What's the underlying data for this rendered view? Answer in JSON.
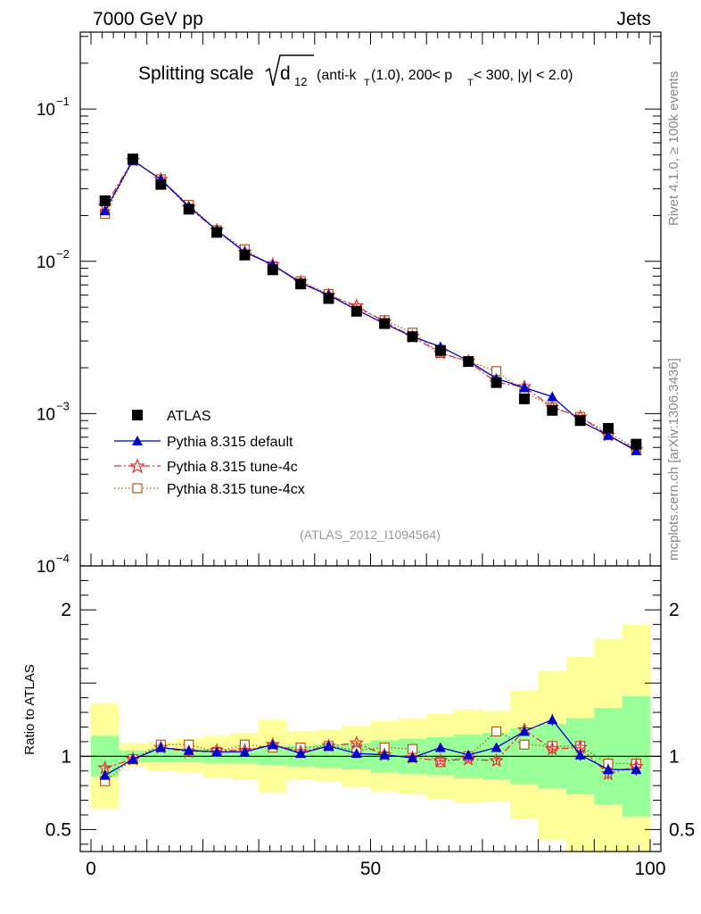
{
  "header": {
    "left": "7000 GeV pp",
    "right": "Jets"
  },
  "side_labels": {
    "rivet": "Rivet 4.1.0, ≥ 100k events",
    "mcplots": "mcplots.cern.ch [arXiv:1306.3436]"
  },
  "chart_data": {
    "type": "line",
    "title": {
      "main": "Splitting scale",
      "symbol": "d",
      "subscript": "12",
      "details_prefix": "(anti-k",
      "details_sub_t": "T",
      "details_mid": "(1.0), 200< p",
      "details_sub_t2": "T",
      "details_suffix": " < 300, |y| < 2.0)"
    },
    "watermark": "(ATLAS_2012_I1094564)",
    "xlim": [
      0,
      100
    ],
    "x_ticks": [
      0,
      50,
      100
    ],
    "x": [
      2.5,
      7.5,
      12.5,
      17.5,
      22.5,
      27.5,
      32.5,
      37.5,
      42.5,
      47.5,
      52.5,
      57.5,
      62.5,
      67.5,
      72.5,
      77.5,
      82.5,
      87.5,
      92.5,
      97.5
    ],
    "main_panel": {
      "yscale": "log",
      "ylim": [
        0.0001,
        0.32
      ],
      "y_ticks": [
        {
          "value": 0.1,
          "base": "10",
          "exp": "−1"
        },
        {
          "value": 0.01,
          "base": "10",
          "exp": "−2"
        },
        {
          "value": 0.001,
          "base": "10",
          "exp": "−3"
        },
        {
          "value": 0.0001,
          "base": "10",
          "exp": "−4"
        }
      ]
    },
    "ratio_panel": {
      "ylabel": "Ratio to ATLAS",
      "ylim": [
        0.35,
        2.3
      ],
      "y_ticks": [
        {
          "value": 0.5,
          "label": "0.5"
        },
        {
          "value": 1,
          "label": "1"
        },
        {
          "value": 2,
          "label": "2"
        }
      ],
      "band_yellow": {
        "low": [
          0.64,
          0.93,
          0.9,
          0.89,
          0.85,
          0.84,
          0.75,
          0.84,
          0.83,
          0.79,
          0.76,
          0.74,
          0.71,
          0.68,
          0.69,
          0.57,
          0.43,
          0.34,
          0.3,
          0.28
        ],
        "high": [
          1.36,
          1.09,
          1.1,
          1.12,
          1.14,
          1.16,
          1.25,
          1.17,
          1.18,
          1.21,
          1.24,
          1.26,
          1.29,
          1.32,
          1.31,
          1.45,
          1.58,
          1.68,
          1.8,
          1.9
        ]
      },
      "band_green": {
        "low": [
          0.86,
          0.96,
          0.96,
          0.96,
          0.95,
          0.95,
          0.94,
          0.93,
          0.92,
          0.91,
          0.89,
          0.88,
          0.87,
          0.85,
          0.84,
          0.81,
          0.78,
          0.74,
          0.67,
          0.59
        ],
        "high": [
          1.14,
          1.04,
          1.05,
          1.05,
          1.05,
          1.05,
          1.06,
          1.07,
          1.08,
          1.09,
          1.11,
          1.12,
          1.13,
          1.15,
          1.16,
          1.19,
          1.22,
          1.26,
          1.33,
          1.41
        ]
      }
    },
    "series": [
      {
        "name": "ATLAS",
        "color": "#000000",
        "marker": "square",
        "values": [
          0.025,
          0.047,
          0.032,
          0.022,
          0.0155,
          0.011,
          0.0088,
          0.0071,
          0.0057,
          0.0047,
          0.0039,
          0.0032,
          0.0026,
          0.0022,
          0.0016,
          0.00125,
          0.00105,
          0.0009,
          0.0008,
          0.00063
        ],
        "ratio": [
          1,
          1,
          1,
          1,
          1,
          1,
          1,
          1,
          1,
          1,
          1,
          1,
          1,
          1,
          1,
          1,
          1,
          1,
          1,
          1
        ]
      },
      {
        "name": "Pythia 8.315 default",
        "color": "#0000cc",
        "marker": "triangle",
        "line": "solid",
        "values": [
          0.0215,
          0.046,
          0.0345,
          0.023,
          0.016,
          0.0115,
          0.0095,
          0.0072,
          0.006,
          0.0048,
          0.0039,
          0.0032,
          0.00275,
          0.00222,
          0.0017,
          0.00148,
          0.00129,
          0.00089,
          0.00072,
          0.00057
        ],
        "ratio": [
          0.87,
          0.98,
          1.06,
          1.04,
          1.03,
          1.03,
          1.08,
          1.02,
          1.07,
          1.02,
          1.01,
          0.99,
          1.06,
          1.01,
          1.06,
          1.17,
          1.25,
          1.01,
          0.91,
          0.91
        ],
        "ratio_err": [
          0.02,
          0.01,
          0.01,
          0.01,
          0.01,
          0.01,
          0.01,
          0.01,
          0.01,
          0.01,
          0.01,
          0.015,
          0.02,
          0.02,
          0.025,
          0.03,
          0.04,
          0.04,
          0.04,
          0.04
        ]
      },
      {
        "name": "Pythia 8.315 tune-4c",
        "color": "#dd3333",
        "marker": "star",
        "line": "dashdot",
        "values": [
          0.023,
          0.046,
          0.0345,
          0.0225,
          0.016,
          0.0115,
          0.0095,
          0.0073,
          0.006,
          0.0051,
          0.004,
          0.0032,
          0.0025,
          0.0022,
          0.0016,
          0.0015,
          0.0011,
          0.00095,
          0.00072,
          0.00058
        ],
        "ratio": [
          0.92,
          0.98,
          1.06,
          1.03,
          1.04,
          1.04,
          1.08,
          1.03,
          1.07,
          1.09,
          1.01,
          0.99,
          0.97,
          0.98,
          0.97,
          1.18,
          1.05,
          1.06,
          0.88,
          0.93
        ],
        "ratio_err": [
          0.02,
          0.01,
          0.01,
          0.01,
          0.01,
          0.01,
          0.01,
          0.01,
          0.01,
          0.015,
          0.015,
          0.015,
          0.02,
          0.02,
          0.025,
          0.03,
          0.04,
          0.04,
          0.04,
          0.04
        ]
      },
      {
        "name": "Pythia 8.315 tune-4cx",
        "color": "#b05a1a",
        "marker": "open-square",
        "line": "dotted",
        "values": [
          0.0205,
          0.046,
          0.0345,
          0.0235,
          0.016,
          0.012,
          0.0093,
          0.0074,
          0.0061,
          0.0049,
          0.0041,
          0.0034,
          0.0025,
          0.0022,
          0.0019,
          0.0014,
          0.0011,
          0.00095,
          0.00075,
          0.00059
        ],
        "ratio": [
          0.83,
          0.98,
          1.08,
          1.08,
          1.03,
          1.08,
          1.06,
          1.06,
          1.07,
          1.04,
          1.06,
          1.05,
          0.96,
          1.0,
          1.17,
          1.08,
          1.07,
          1.07,
          0.95,
          0.95
        ],
        "ratio_err": [
          0.02,
          0.01,
          0.01,
          0.01,
          0.01,
          0.01,
          0.01,
          0.01,
          0.01,
          0.015,
          0.015,
          0.015,
          0.02,
          0.02,
          0.025,
          0.03,
          0.04,
          0.04,
          0.04,
          0.04
        ]
      }
    ]
  }
}
